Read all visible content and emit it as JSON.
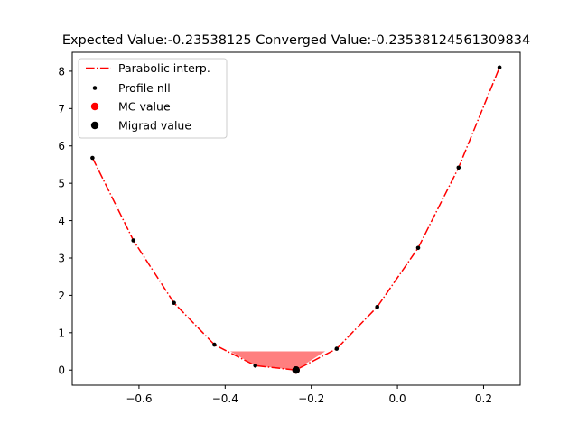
{
  "chart_data": {
    "type": "line",
    "title": "Expected Value:-0.23538125 Converged Value:-0.23538124561309834",
    "xlabel": "",
    "ylabel": "",
    "xlim": [
      -0.755,
      0.285
    ],
    "ylim": [
      -0.405,
      8.505
    ],
    "x_ticks": [
      -0.6,
      -0.4,
      -0.2,
      0.0,
      0.2
    ],
    "x_tick_labels": [
      "−0.6",
      "−0.4",
      "−0.2",
      "0.0",
      "0.2"
    ],
    "y_ticks": [
      0,
      1,
      2,
      3,
      4,
      5,
      6,
      7,
      8
    ],
    "y_tick_labels": [
      "0",
      "1",
      "2",
      "3",
      "4",
      "5",
      "6",
      "7",
      "8"
    ],
    "grid": false,
    "legend_position": "top-left",
    "series": [
      {
        "name": "Parabolic interp.",
        "kind": "line",
        "style": "dashdot",
        "color": "#ff0000",
        "x": [
          -0.708,
          -0.613,
          -0.519,
          -0.425,
          -0.33,
          -0.236,
          -0.141,
          -0.047,
          0.048,
          0.142,
          0.237
        ],
        "y": [
          5.68,
          3.47,
          1.8,
          0.68,
          0.12,
          0.0,
          0.57,
          1.69,
          3.27,
          5.42,
          8.1
        ]
      },
      {
        "name": "Profile nll",
        "kind": "scatter",
        "marker_size": "small",
        "color": "#000000",
        "x": [
          -0.708,
          -0.613,
          -0.519,
          -0.425,
          -0.33,
          -0.141,
          -0.047,
          0.048,
          0.142,
          0.237
        ],
        "y": [
          5.68,
          3.47,
          1.8,
          0.68,
          0.12,
          0.57,
          1.69,
          3.27,
          5.42,
          8.1
        ]
      },
      {
        "name": "MC value",
        "kind": "scatter",
        "marker_size": "large",
        "color": "#ff0000",
        "x": [
          -0.23538125
        ],
        "y": [
          0.0
        ]
      },
      {
        "name": "Migrad value",
        "kind": "scatter",
        "marker_size": "large",
        "color": "#000000",
        "x": [
          -0.23538124561309834
        ],
        "y": [
          0.0
        ]
      }
    ],
    "shaded_region": {
      "color": "#ff0000",
      "opacity": 0.5,
      "y_level": 0.5,
      "x_range": [
        -0.388,
        -0.168
      ],
      "x": [
        -0.388,
        -0.33,
        -0.236,
        -0.168
      ],
      "y": [
        0.5,
        0.12,
        0.0,
        0.5
      ]
    }
  }
}
